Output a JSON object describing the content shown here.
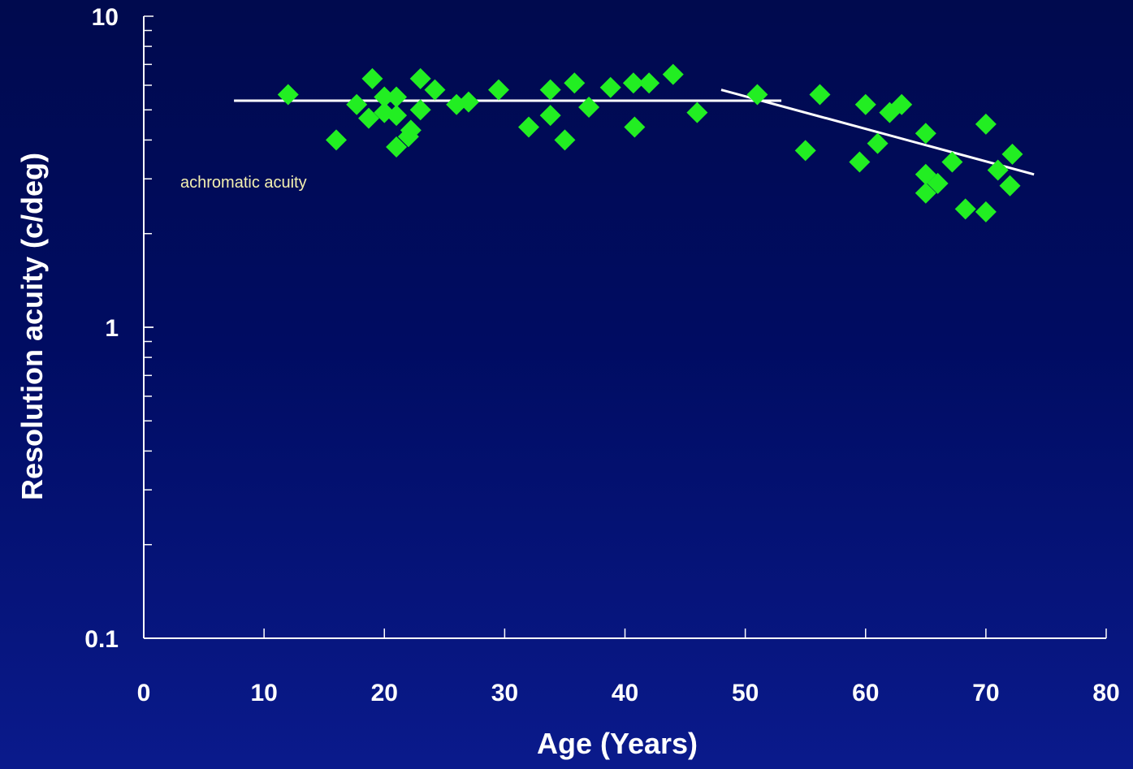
{
  "chart_data": {
    "type": "scatter",
    "title": "",
    "xlabel": "Age (Years)",
    "ylabel": "Resolution acuity (c/deg)",
    "xlim": [
      0,
      80
    ],
    "ylim": [
      0.1,
      10
    ],
    "y_scale": "log",
    "x_ticks": [
      0,
      10,
      20,
      30,
      40,
      50,
      60,
      70,
      80
    ],
    "x_tick_labels": [
      "0",
      "10",
      "20",
      "30",
      "40",
      "50",
      "60",
      "70",
      "80"
    ],
    "y_tick_labels": [
      {
        "value": 10,
        "label": "10"
      },
      {
        "value": 1,
        "label": "1"
      },
      {
        "value": 0.1,
        "label": "0.1"
      }
    ],
    "grid": false,
    "colors": {
      "markers": "#22ee22",
      "fit_lines": "#ffffff",
      "axes": "#ffffff",
      "annotation": "#f4f0b0"
    },
    "annotation": "achromatic acuity",
    "series": [
      {
        "marker": "diamond",
        "points": [
          [
            12,
            5.6
          ],
          [
            16,
            4.0
          ],
          [
            17.7,
            5.2
          ],
          [
            18.7,
            4.7
          ],
          [
            19,
            6.3
          ],
          [
            20,
            5.5
          ],
          [
            20,
            4.9
          ],
          [
            21,
            5.5
          ],
          [
            21,
            4.8
          ],
          [
            21,
            3.8
          ],
          [
            22,
            4.1
          ],
          [
            22.2,
            4.3
          ],
          [
            23,
            6.3
          ],
          [
            23,
            5.0
          ],
          [
            24.2,
            5.8
          ],
          [
            26,
            5.2
          ],
          [
            27,
            5.3
          ],
          [
            29.5,
            5.8
          ],
          [
            32,
            4.4
          ],
          [
            33.8,
            5.8
          ],
          [
            33.8,
            4.8
          ],
          [
            35,
            4.0
          ],
          [
            35.8,
            6.1
          ],
          [
            37,
            5.1
          ],
          [
            38.8,
            5.9
          ],
          [
            40.7,
            6.1
          ],
          [
            40.8,
            4.4
          ],
          [
            42,
            6.1
          ],
          [
            44,
            6.5
          ],
          [
            46,
            4.9
          ],
          [
            51,
            5.6
          ],
          [
            55,
            3.7
          ],
          [
            56.2,
            5.6
          ],
          [
            59.5,
            3.4
          ],
          [
            60,
            5.2
          ],
          [
            61,
            3.9
          ],
          [
            62,
            4.9
          ],
          [
            63,
            5.2
          ],
          [
            65,
            4.2
          ],
          [
            65,
            3.1
          ],
          [
            65,
            2.7
          ],
          [
            66,
            2.9
          ],
          [
            67.2,
            3.4
          ],
          [
            68.3,
            2.4
          ],
          [
            70,
            2.35
          ],
          [
            70,
            4.5
          ],
          [
            71,
            3.2
          ],
          [
            72,
            2.85
          ],
          [
            72.2,
            3.6
          ]
        ]
      }
    ],
    "fit_lines": [
      {
        "x": [
          7.5,
          53
        ],
        "y": [
          5.35,
          5.35
        ]
      },
      {
        "x": [
          48,
          74
        ],
        "y": [
          5.8,
          3.1
        ]
      }
    ]
  }
}
